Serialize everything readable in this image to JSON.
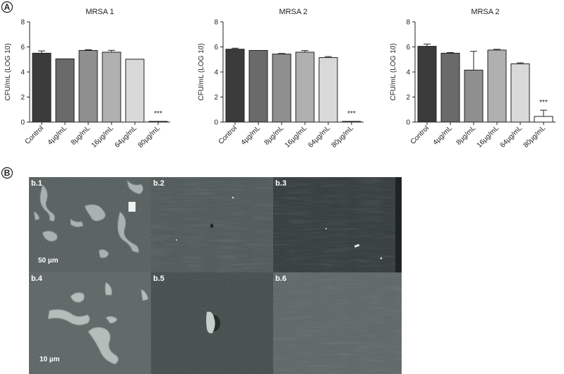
{
  "panel_labels": {
    "a": "A",
    "b": "B"
  },
  "chart_data": [
    {
      "type": "bar",
      "title": "MRSA 1",
      "ylabel": "CFU/mL (LOG 10)",
      "xlabel": "",
      "categories": [
        "Control",
        "4µg/mL",
        "8µg/mL",
        "16µg/mL",
        "64µg/mL",
        "80µg/mL"
      ],
      "values": [
        5.5,
        5.05,
        5.72,
        5.58,
        5.02,
        0.05
      ],
      "errors": [
        0.18,
        0,
        0.06,
        0.15,
        0,
        0
      ],
      "colors": [
        "#3b3b3b",
        "#6a6a6a",
        "#8f8f8f",
        "#b0b0b0",
        "#d9d9d9",
        "#ffffff"
      ],
      "annotations": [
        {
          "category": "80µg/mL",
          "text": "***"
        }
      ],
      "ylim": [
        0,
        8
      ],
      "yticks": [
        0,
        2,
        4,
        6,
        8
      ]
    },
    {
      "type": "bar",
      "title": "MRSA 2",
      "ylabel": "CFU/mL (LOG 10)",
      "xlabel": "",
      "categories": [
        "Control",
        "4µg/mL",
        "8µg/mL",
        "16µg/mL",
        "64µg/mL",
        "80µg/mL"
      ],
      "values": [
        5.82,
        5.72,
        5.43,
        5.58,
        5.15,
        0.05
      ],
      "errors": [
        0.08,
        0,
        0.05,
        0.13,
        0.08,
        0
      ],
      "colors": [
        "#3b3b3b",
        "#6a6a6a",
        "#8f8f8f",
        "#b0b0b0",
        "#d9d9d9",
        "#ffffff"
      ],
      "annotations": [
        {
          "category": "80µg/mL",
          "text": "***"
        }
      ],
      "ylim": [
        0,
        8
      ],
      "yticks": [
        0,
        2,
        4,
        6,
        8
      ]
    },
    {
      "type": "bar",
      "title": "MRSA 2",
      "ylabel": "CFU/mL (LOG 10)",
      "xlabel": "",
      "categories": [
        "Control",
        "4µg/mL",
        "8µg/mL",
        "16µg/mL",
        "64µg/mL",
        "80µg/mL"
      ],
      "values": [
        6.05,
        5.5,
        4.15,
        5.75,
        4.65,
        0.45
      ],
      "errors": [
        0.18,
        0.05,
        1.5,
        0.06,
        0.08,
        0.5
      ],
      "colors": [
        "#3b3b3b",
        "#6a6a6a",
        "#8f8f8f",
        "#b0b0b0",
        "#d9d9d9",
        "#ffffff"
      ],
      "annotations": [
        {
          "category": "80µg/mL",
          "text": "***"
        }
      ],
      "ylim": [
        0,
        8
      ],
      "yticks": [
        0,
        2,
        4,
        6,
        8
      ]
    }
  ],
  "micrographs": [
    {
      "label": "b.1",
      "scale": "50 µm"
    },
    {
      "label": "b.2",
      "scale": ""
    },
    {
      "label": "b.3",
      "scale": ""
    },
    {
      "label": "b.4",
      "scale": "10 µm"
    },
    {
      "label": "b.5",
      "scale": ""
    },
    {
      "label": "b.6",
      "scale": ""
    }
  ]
}
